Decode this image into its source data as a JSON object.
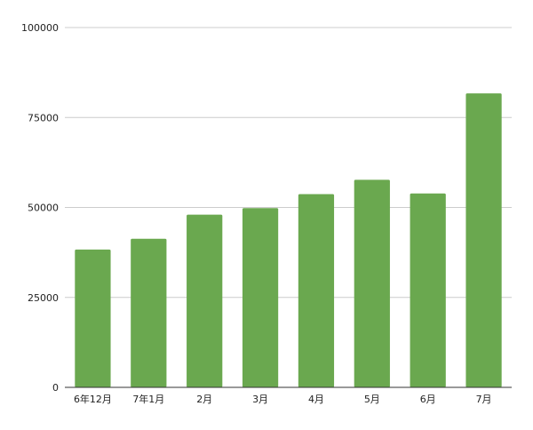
{
  "chart_data": {
    "type": "bar",
    "categories": [
      "6年12月",
      "7年1月",
      "2月",
      "3月",
      "4月",
      "5月",
      "6月",
      "7月"
    ],
    "values": [
      38300,
      41300,
      48000,
      49800,
      53700,
      57700,
      53900,
      81700
    ],
    "ylim": [
      0,
      100000
    ],
    "yticks": [
      "0",
      "25000",
      "50000",
      "75000",
      "100000"
    ],
    "grid": true,
    "legend": "none",
    "colors": {
      "bar": "#6aa84f",
      "grid": "#cccccc",
      "axis": "#333333",
      "text": "#222222"
    }
  }
}
